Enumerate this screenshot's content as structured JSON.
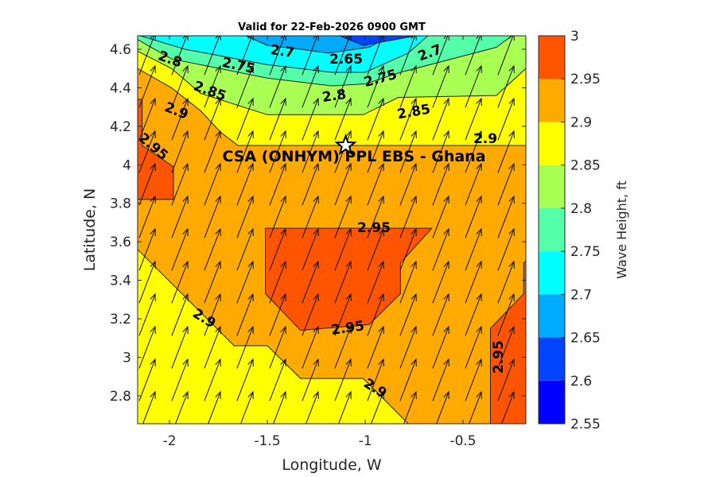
{
  "chart_data": {
    "type": "contour",
    "title": "Valid for 22-Feb-2026 0900 GMT",
    "xlabel": "Longitude, W",
    "ylabel": "Latitude, N",
    "xlim": [
      -2.163,
      -0.179
    ],
    "ylim": [
      2.655,
      4.67
    ],
    "xticks": [
      -2,
      -1.5,
      -1,
      -0.5
    ],
    "xtick_labels": [
      "-2",
      "-1.5",
      "-1",
      "-0.5"
    ],
    "yticks": [
      2.8,
      3,
      3.2,
      3.4,
      3.6,
      3.8,
      4,
      4.2,
      4.4,
      4.6
    ],
    "ytick_labels": [
      "2.8",
      "3",
      "3.2",
      "3.4",
      "3.6",
      "3.8",
      "4",
      "4.2",
      "4.4",
      "4.6"
    ],
    "colorbar": {
      "label": "Wave Height, ft",
      "levels": [
        2.55,
        2.6,
        2.65,
        2.7,
        2.75,
        2.8,
        2.85,
        2.9,
        2.95,
        3
      ],
      "tick_labels": [
        "2.55",
        "2.6",
        "2.65",
        "2.7",
        "2.75",
        "2.8",
        "2.85",
        "2.9",
        "2.95",
        "3"
      ],
      "colors": [
        "#0000ff",
        "#0044ff",
        "#00aaff",
        "#00ffff",
        "#55ffaa",
        "#aaff55",
        "#ffff00",
        "#ffaa00",
        "#ff5500"
      ]
    },
    "background_level_color": "#ffaa00",
    "regions": [
      {
        "level": "2.85-2.9",
        "color": "#ffff00",
        "lonlat": [
          [
            -2.163,
            4.67
          ],
          [
            -0.179,
            4.67
          ],
          [
            -0.179,
            4.1
          ],
          [
            -1.65,
            4.1
          ],
          [
            -1.74,
            4.17
          ],
          [
            -1.84,
            4.28
          ],
          [
            -1.99,
            4.4
          ],
          [
            -2.163,
            4.5
          ]
        ]
      },
      {
        "level": "2.85-2.9",
        "color": "#ffff00",
        "lonlat": [
          [
            -2.163,
            3.56
          ],
          [
            -1.67,
            3.06
          ],
          [
            -1.5,
            3.06
          ],
          [
            -1.33,
            2.89
          ],
          [
            -1.01,
            2.89
          ],
          [
            -0.78,
            2.655
          ],
          [
            -2.163,
            2.655
          ]
        ]
      },
      {
        "level": "2.8-2.85",
        "color": "#aaff55",
        "lonlat": [
          [
            -2.163,
            4.67
          ],
          [
            -0.179,
            4.67
          ],
          [
            -0.179,
            4.5
          ],
          [
            -0.33,
            4.36
          ],
          [
            -0.83,
            4.35
          ],
          [
            -1.01,
            4.26
          ],
          [
            -1.5,
            4.26
          ],
          [
            -1.84,
            4.37
          ],
          [
            -1.99,
            4.5
          ],
          [
            -2.163,
            4.59
          ]
        ]
      },
      {
        "level": "2.75-2.8",
        "color": "#55ffaa",
        "lonlat": [
          [
            -2.163,
            4.67
          ],
          [
            -0.25,
            4.67
          ],
          [
            -0.33,
            4.61
          ],
          [
            -0.82,
            4.48
          ],
          [
            -1.0,
            4.42
          ],
          [
            -1.17,
            4.41
          ],
          [
            -1.5,
            4.45
          ],
          [
            -1.99,
            4.55
          ],
          [
            -2.163,
            4.65
          ]
        ]
      },
      {
        "level": "2.7-2.75",
        "color": "#00ffff",
        "lonlat": [
          [
            -2.15,
            4.67
          ],
          [
            -0.68,
            4.67
          ],
          [
            -0.78,
            4.58
          ],
          [
            -1.0,
            4.48
          ],
          [
            -1.17,
            4.48
          ],
          [
            -1.5,
            4.52
          ],
          [
            -1.92,
            4.6
          ]
        ]
      },
      {
        "level": "2.65-2.7",
        "color": "#00aaff",
        "lonlat": [
          [
            -1.61,
            4.67
          ],
          [
            -0.87,
            4.67
          ],
          [
            -0.98,
            4.61
          ],
          [
            -1.19,
            4.58
          ],
          [
            -1.33,
            4.6
          ],
          [
            -1.5,
            4.62
          ]
        ]
      },
      {
        "level": "2.6-2.65",
        "color": "#0044ff",
        "lonlat": [
          [
            -1.13,
            4.67
          ],
          [
            -0.74,
            4.67
          ],
          [
            -1.01,
            4.62
          ]
        ]
      },
      {
        "level": "2.95-3",
        "color": "#ff5500",
        "lonlat": [
          [
            -2.163,
            4.34
          ],
          [
            -2.14,
            4.34
          ],
          [
            -2.14,
            4.1
          ],
          [
            -1.98,
            3.99
          ],
          [
            -1.98,
            3.82
          ],
          [
            -2.163,
            3.82
          ]
        ]
      },
      {
        "level": "2.95-3",
        "color": "#ff5500",
        "lonlat": [
          [
            -1.51,
            3.67
          ],
          [
            -0.66,
            3.67
          ],
          [
            -0.82,
            3.49
          ],
          [
            -0.82,
            3.33
          ],
          [
            -0.98,
            3.17
          ],
          [
            -1.33,
            3.14
          ],
          [
            -1.51,
            3.33
          ]
        ]
      },
      {
        "level": "2.95-3",
        "color": "#ff5500",
        "lonlat": [
          [
            -0.179,
            3.5
          ],
          [
            -0.19,
            3.49
          ],
          [
            -0.19,
            3.33
          ],
          [
            -0.36,
            3.15
          ],
          [
            -0.36,
            2.655
          ],
          [
            -0.179,
            2.655
          ]
        ]
      }
    ],
    "contour_labels": [
      "2.7",
      "2.75",
      "2.8",
      "2.85",
      "2.9",
      "2.95",
      "2.65",
      "2.7",
      "2.75",
      "2.8",
      "2.85",
      "2.9",
      "2.95",
      "2.95",
      "2.9",
      "2.9",
      "2.95"
    ],
    "vector_field": {
      "description_units": "uniform wave direction",
      "direction_deg_from_north": 21
    },
    "site": {
      "name": "CSA (ONHYM) PPL EBS  - Ghana",
      "lon": -1.1,
      "lat": 4.1,
      "marker": "star"
    }
  }
}
